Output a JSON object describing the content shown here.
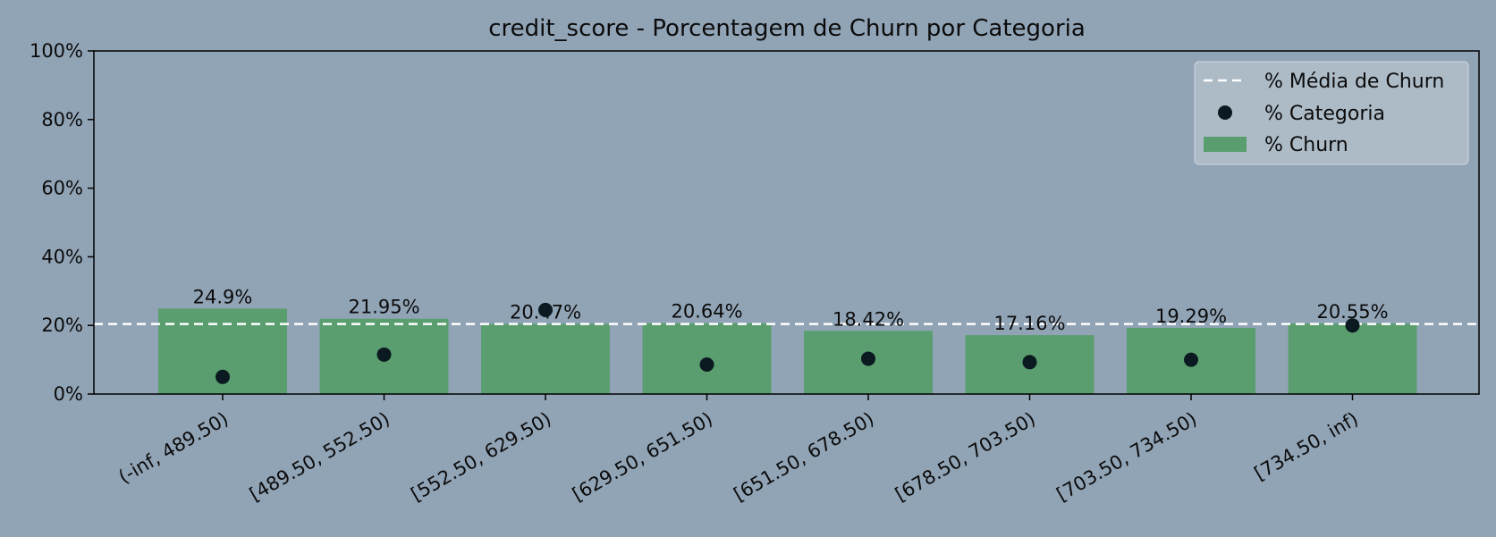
{
  "chart_data": {
    "type": "bar",
    "title": "credit_score - Porcentagem de Churn por Categoria",
    "xlabel": "",
    "ylabel": "",
    "ylim": [
      0,
      100
    ],
    "y_ticks": [
      "0%",
      "20%",
      "40%",
      "60%",
      "80%",
      "100%"
    ],
    "y_tick_values": [
      0,
      20,
      40,
      60,
      80,
      100
    ],
    "categories": [
      "(-inf, 489.50)",
      "[489.50, 552.50)",
      "[552.50, 629.50)",
      "[629.50, 651.50)",
      "[651.50, 678.50)",
      "[678.50, 703.50)",
      "[703.50, 734.50)",
      "[734.50, inf)"
    ],
    "series": [
      {
        "name": "% Churn",
        "kind": "bar",
        "values": [
          24.9,
          21.95,
          20.47,
          20.64,
          18.42,
          17.16,
          19.29,
          20.55
        ],
        "labels": [
          "24.9%",
          "21.95%",
          "20.47%",
          "20.64%",
          "18.42%",
          "17.16%",
          "19.29%",
          "20.55%"
        ],
        "color": "#5a9e6f"
      },
      {
        "name": "% Categoria",
        "kind": "scatter",
        "values": [
          5.0,
          11.5,
          24.5,
          8.6,
          10.3,
          9.3,
          10.0,
          20.0
        ],
        "color": "#0a1a20"
      },
      {
        "name": "% Média de Churn",
        "kind": "hline",
        "value": 20.4,
        "color": "#ffffff",
        "dashed": true
      }
    ],
    "legend_position": "top-right",
    "grid": false,
    "background_color": "#91a4b6",
    "legend_background": "#b2bfca"
  }
}
